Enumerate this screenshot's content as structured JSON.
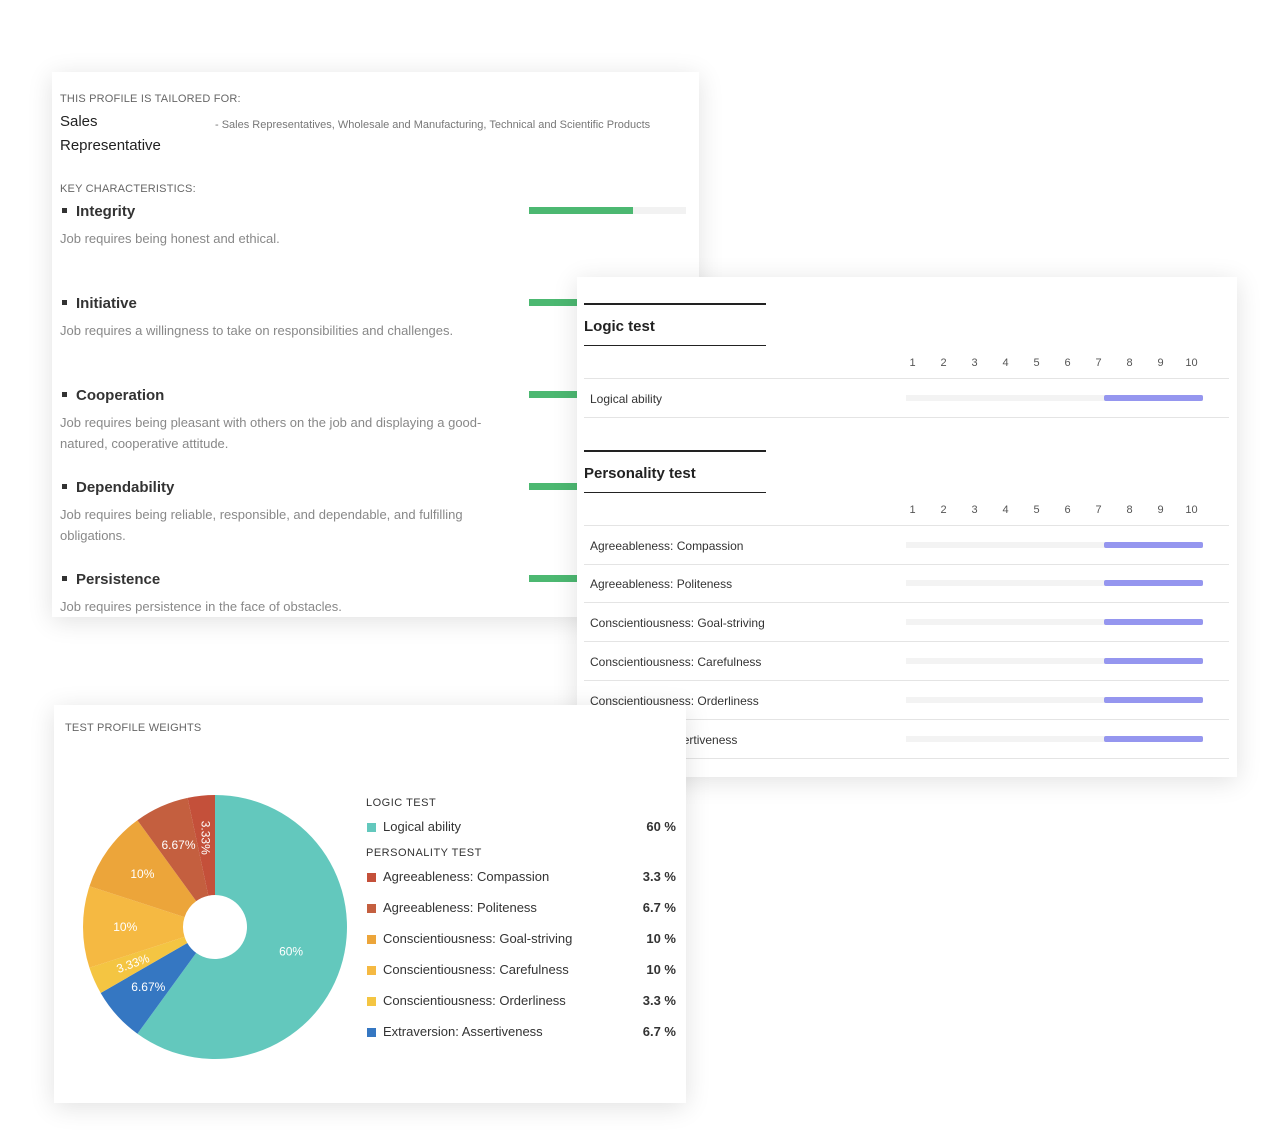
{
  "profile": {
    "caption": "This profile is tailored for:",
    "role": "Sales Representative",
    "description": "- Sales Representatives, Wholesale and Manufacturing, Technical and Scientific Products",
    "key_caption": "Key characteristics:",
    "characteristics": [
      {
        "name": "Integrity",
        "description": "Job requires being honest and ethical.",
        "level": 0.66
      },
      {
        "name": "Initiative",
        "description": "Job requires a willingness to take on responsibilities and challenges.",
        "level": 0.66
      },
      {
        "name": "Cooperation",
        "description": "Job requires being pleasant with others on the job and displaying a good-natured, cooperative attitude.",
        "level": 0.66
      },
      {
        "name": "Dependability",
        "description": "Job requires being reliable, responsible, and dependable, and fulfilling obligations.",
        "level": 0.66
      },
      {
        "name": "Persistence",
        "description": "Job requires persistence in the face of obstacles.",
        "level": 0.66
      }
    ]
  },
  "tests": {
    "scale": [
      "1",
      "2",
      "3",
      "4",
      "5",
      "6",
      "7",
      "8",
      "9",
      "10"
    ],
    "logic": {
      "title": "Logic test",
      "rows": [
        {
          "label": "Logical ability",
          "range": [
            7,
            10
          ]
        }
      ]
    },
    "personality": {
      "title": "Personality test",
      "rows": [
        {
          "label": "Agreeableness: Compassion",
          "range": [
            7,
            10
          ]
        },
        {
          "label": "Agreeableness: Politeness",
          "range": [
            7,
            10
          ]
        },
        {
          "label": "Conscientiousness: Goal-striving",
          "range": [
            7,
            10
          ]
        },
        {
          "label": "Conscientiousness: Carefulness",
          "range": [
            7,
            10
          ]
        },
        {
          "label": "Conscientiousness: Orderliness",
          "range": [
            7,
            10
          ]
        },
        {
          "label": "Extraversion: Assertiveness",
          "range": [
            7,
            10
          ]
        }
      ]
    }
  },
  "weights": {
    "caption": "Test profile weights",
    "groups": [
      {
        "title": "Logic test",
        "items": [
          {
            "name": "Logical ability",
            "pct": "60 %"
          }
        ]
      },
      {
        "title": "Personality test",
        "items": [
          {
            "name": "Agreeableness: Compassion",
            "pct": "3.3 %"
          },
          {
            "name": "Agreeableness: Politeness",
            "pct": "6.7 %"
          },
          {
            "name": "Conscientiousness: Goal-striving",
            "pct": "10 %"
          },
          {
            "name": "Conscientiousness: Carefulness",
            "pct": "10 %"
          },
          {
            "name": "Conscientiousness: Orderliness",
            "pct": "3.3 %"
          },
          {
            "name": "Extraversion: Assertiveness",
            "pct": "6.7 %"
          }
        ]
      }
    ]
  },
  "chart_data": {
    "type": "pie",
    "donut": true,
    "slices": [
      {
        "name": "Logical ability",
        "value": 60,
        "label": "60%",
        "color": "#63c8bd"
      },
      {
        "name": "Extraversion: Assertiveness",
        "value": 6.67,
        "label": "6.67%",
        "color": "#3577c2"
      },
      {
        "name": "Conscientiousness: Orderliness",
        "value": 3.33,
        "label": "3.33%",
        "color": "#f4c542"
      },
      {
        "name": "Conscientiousness: Carefulness",
        "value": 10,
        "label": "10%",
        "color": "#f5b942"
      },
      {
        "name": "Conscientiousness: Goal-striving",
        "value": 10,
        "label": "10%",
        "color": "#eca53a"
      },
      {
        "name": "Agreeableness: Politeness",
        "value": 6.67,
        "label": "6.67%",
        "color": "#c45f3f"
      },
      {
        "name": "Agreeableness: Compassion",
        "value": 3.33,
        "label": "3.33%",
        "color": "#c4503a"
      }
    ]
  }
}
